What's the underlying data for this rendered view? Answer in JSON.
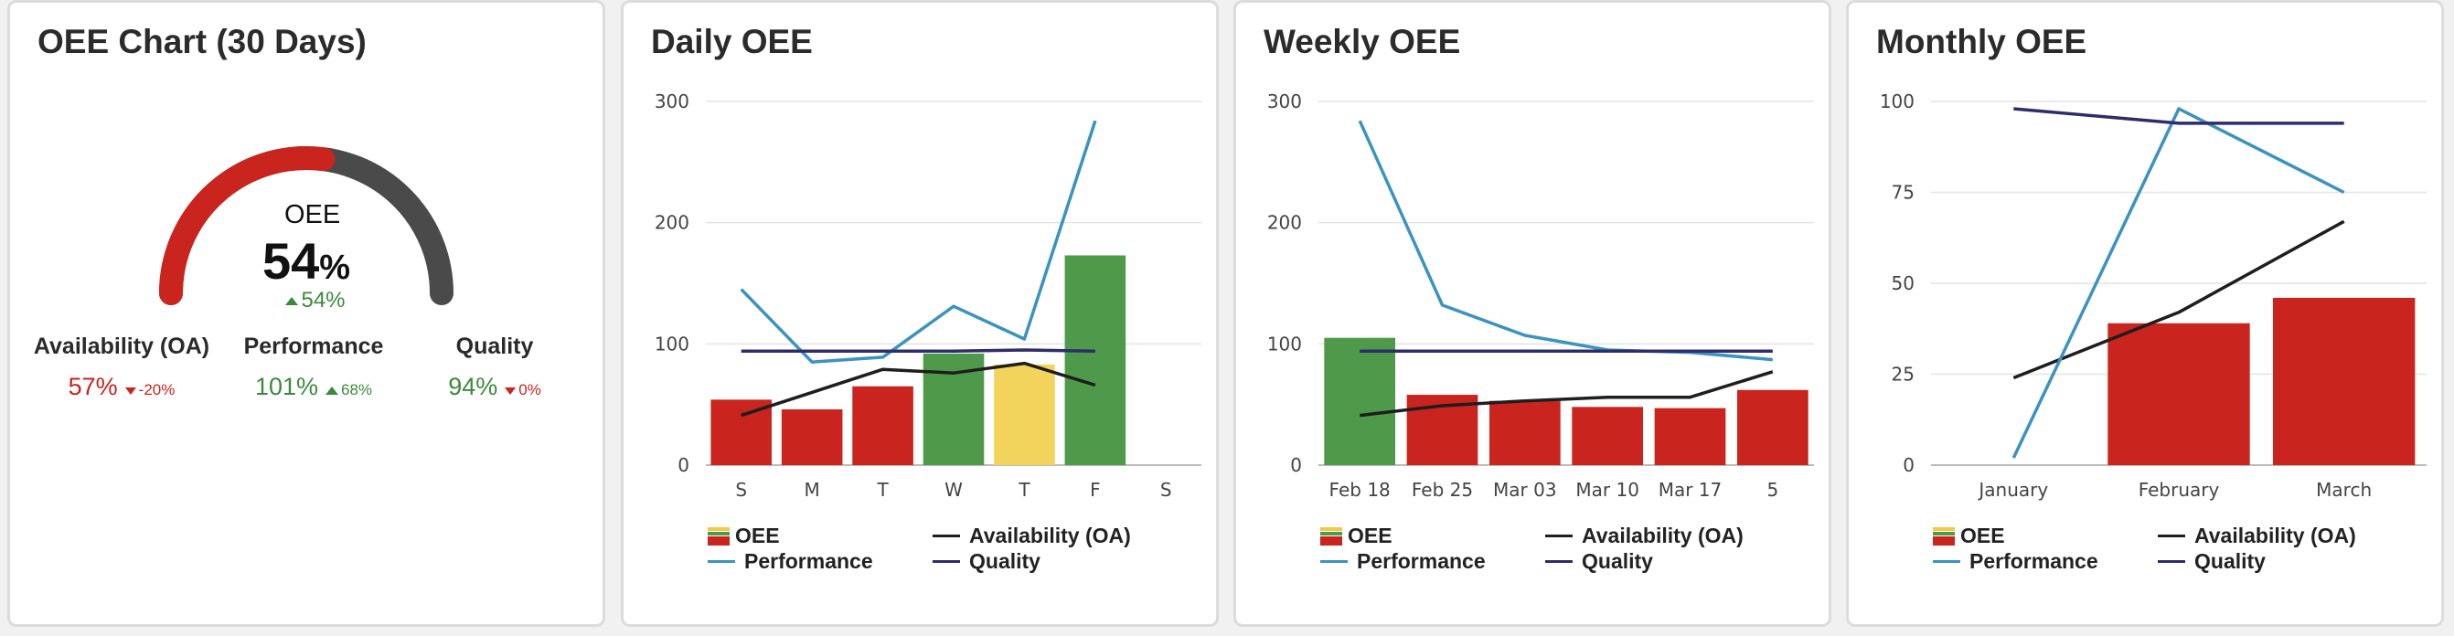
{
  "colors": {
    "red": "#c9241d",
    "green": "#4e9a4a",
    "yellow": "#f2d45c",
    "gauge_bg": "#4a4a4a",
    "performance": "#3c93bd",
    "availability": "#1e1e1e",
    "quality": "#2e2d6b",
    "pos": "#3b8a3b",
    "neg": "#c9241d"
  },
  "gauge": {
    "title": "OEE Chart (30 Days)",
    "label": "OEE",
    "value_num": "54",
    "value_pct": "%",
    "value": 54,
    "trend": "54%",
    "metrics": [
      {
        "name": "Availability (OA)",
        "value": "57%",
        "delta": "-20%",
        "value_color": "neg",
        "delta_dir": "down"
      },
      {
        "name": "Performance",
        "value": "101%",
        "delta": "68%",
        "value_color": "pos",
        "delta_dir": "up"
      },
      {
        "name": "Quality",
        "value": "94%",
        "delta": "0%",
        "value_color": "pos",
        "delta_dir": "down"
      }
    ]
  },
  "legend": {
    "oee": "OEE",
    "availability": "Availability (OA)",
    "performance": "Performance",
    "quality": "Quality"
  },
  "chart_data": [
    {
      "type": "bar",
      "title": "Daily OEE",
      "categories": [
        "S",
        "M",
        "T",
        "W",
        "T",
        "F",
        "S"
      ],
      "ylim": [
        0,
        300
      ],
      "yticks": [
        0,
        100,
        200,
        300
      ],
      "series": [
        {
          "name": "OEE",
          "values": [
            54,
            46,
            65,
            92,
            83,
            173,
            null
          ],
          "colors": [
            "red",
            "red",
            "red",
            "green",
            "yellow",
            "green",
            "red"
          ]
        },
        {
          "name": "Availability (OA)",
          "values": [
            41,
            60,
            79,
            76,
            84,
            66,
            null
          ]
        },
        {
          "name": "Performance",
          "values": [
            145,
            85,
            89,
            131,
            104,
            284,
            null
          ]
        },
        {
          "name": "Quality",
          "values": [
            94,
            94,
            94,
            94,
            95,
            94,
            null
          ]
        }
      ]
    },
    {
      "type": "bar",
      "title": "Weekly OEE",
      "categories": [
        "Feb 18",
        "Feb 25",
        "Mar 03",
        "Mar 10",
        "Mar 17",
        "5"
      ],
      "ylim": [
        0,
        300
      ],
      "yticks": [
        0,
        100,
        200,
        300
      ],
      "series": [
        {
          "name": "OEE",
          "values": [
            105,
            58,
            53,
            48,
            47,
            62
          ],
          "colors": [
            "green",
            "red",
            "red",
            "red",
            "red",
            "red"
          ]
        },
        {
          "name": "Availability (OA)",
          "values": [
            41,
            49,
            53,
            56,
            56,
            77
          ]
        },
        {
          "name": "Performance",
          "values": [
            284,
            132,
            107,
            95,
            93,
            87
          ]
        },
        {
          "name": "Quality",
          "values": [
            94,
            94,
            94,
            94,
            94,
            94
          ]
        }
      ]
    },
    {
      "type": "bar",
      "title": "Monthly OEE",
      "categories": [
        "January",
        "February",
        "March"
      ],
      "ylim": [
        0,
        100
      ],
      "yticks": [
        0,
        25,
        50,
        75,
        100
      ],
      "series": [
        {
          "name": "OEE",
          "values": [
            null,
            39,
            46
          ],
          "colors": [
            "red",
            "red",
            "red"
          ]
        },
        {
          "name": "Availability (OA)",
          "values": [
            24,
            42,
            67
          ]
        },
        {
          "name": "Performance",
          "values": [
            2,
            98,
            75
          ]
        },
        {
          "name": "Quality",
          "values": [
            98,
            94,
            94
          ]
        }
      ]
    }
  ]
}
